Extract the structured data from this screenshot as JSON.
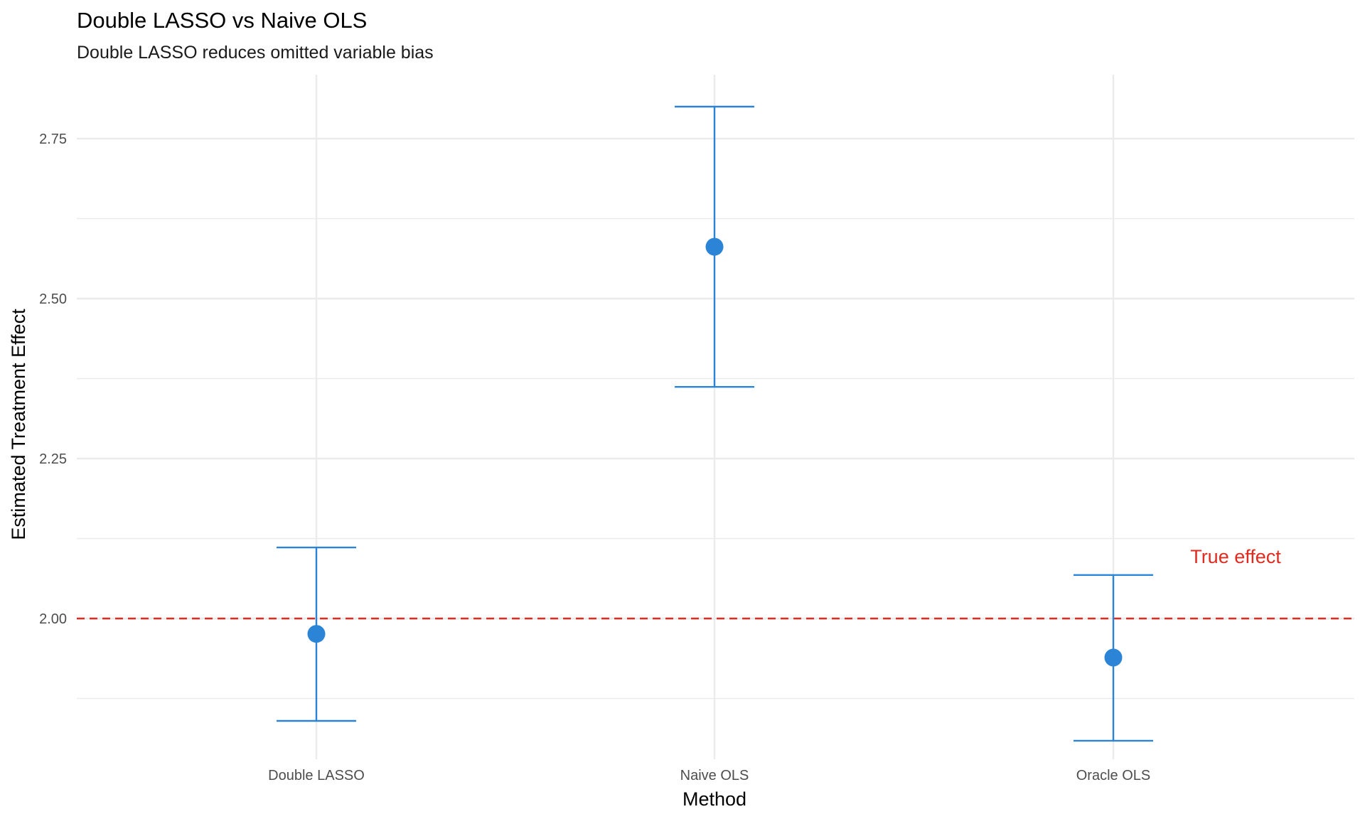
{
  "chart_data": {
    "type": "scatter",
    "title": "Double LASSO vs Naive OLS",
    "subtitle": "Double LASSO reduces omitted variable bias",
    "xlabel": "Method",
    "ylabel": "Estimated Treatment Effect",
    "categories": [
      "Double LASSO",
      "Naive OLS",
      "Oracle OLS"
    ],
    "points": [
      {
        "method": "Double LASSO",
        "estimate": 1.976,
        "lower": 1.84,
        "upper": 2.111
      },
      {
        "method": "Naive OLS",
        "estimate": 2.581,
        "lower": 2.362,
        "upper": 2.8
      },
      {
        "method": "Oracle OLS",
        "estimate": 1.939,
        "lower": 1.809,
        "upper": 2.068
      }
    ],
    "yticks": [
      "2.00",
      "2.25",
      "2.50",
      "2.75"
    ],
    "ylim": [
      1.78,
      2.85
    ],
    "reference_line": {
      "value": 2.0,
      "label": "True effect",
      "color": "#e02b20",
      "style": "dashed"
    },
    "point_color": "#2b84d6",
    "grid": true
  }
}
